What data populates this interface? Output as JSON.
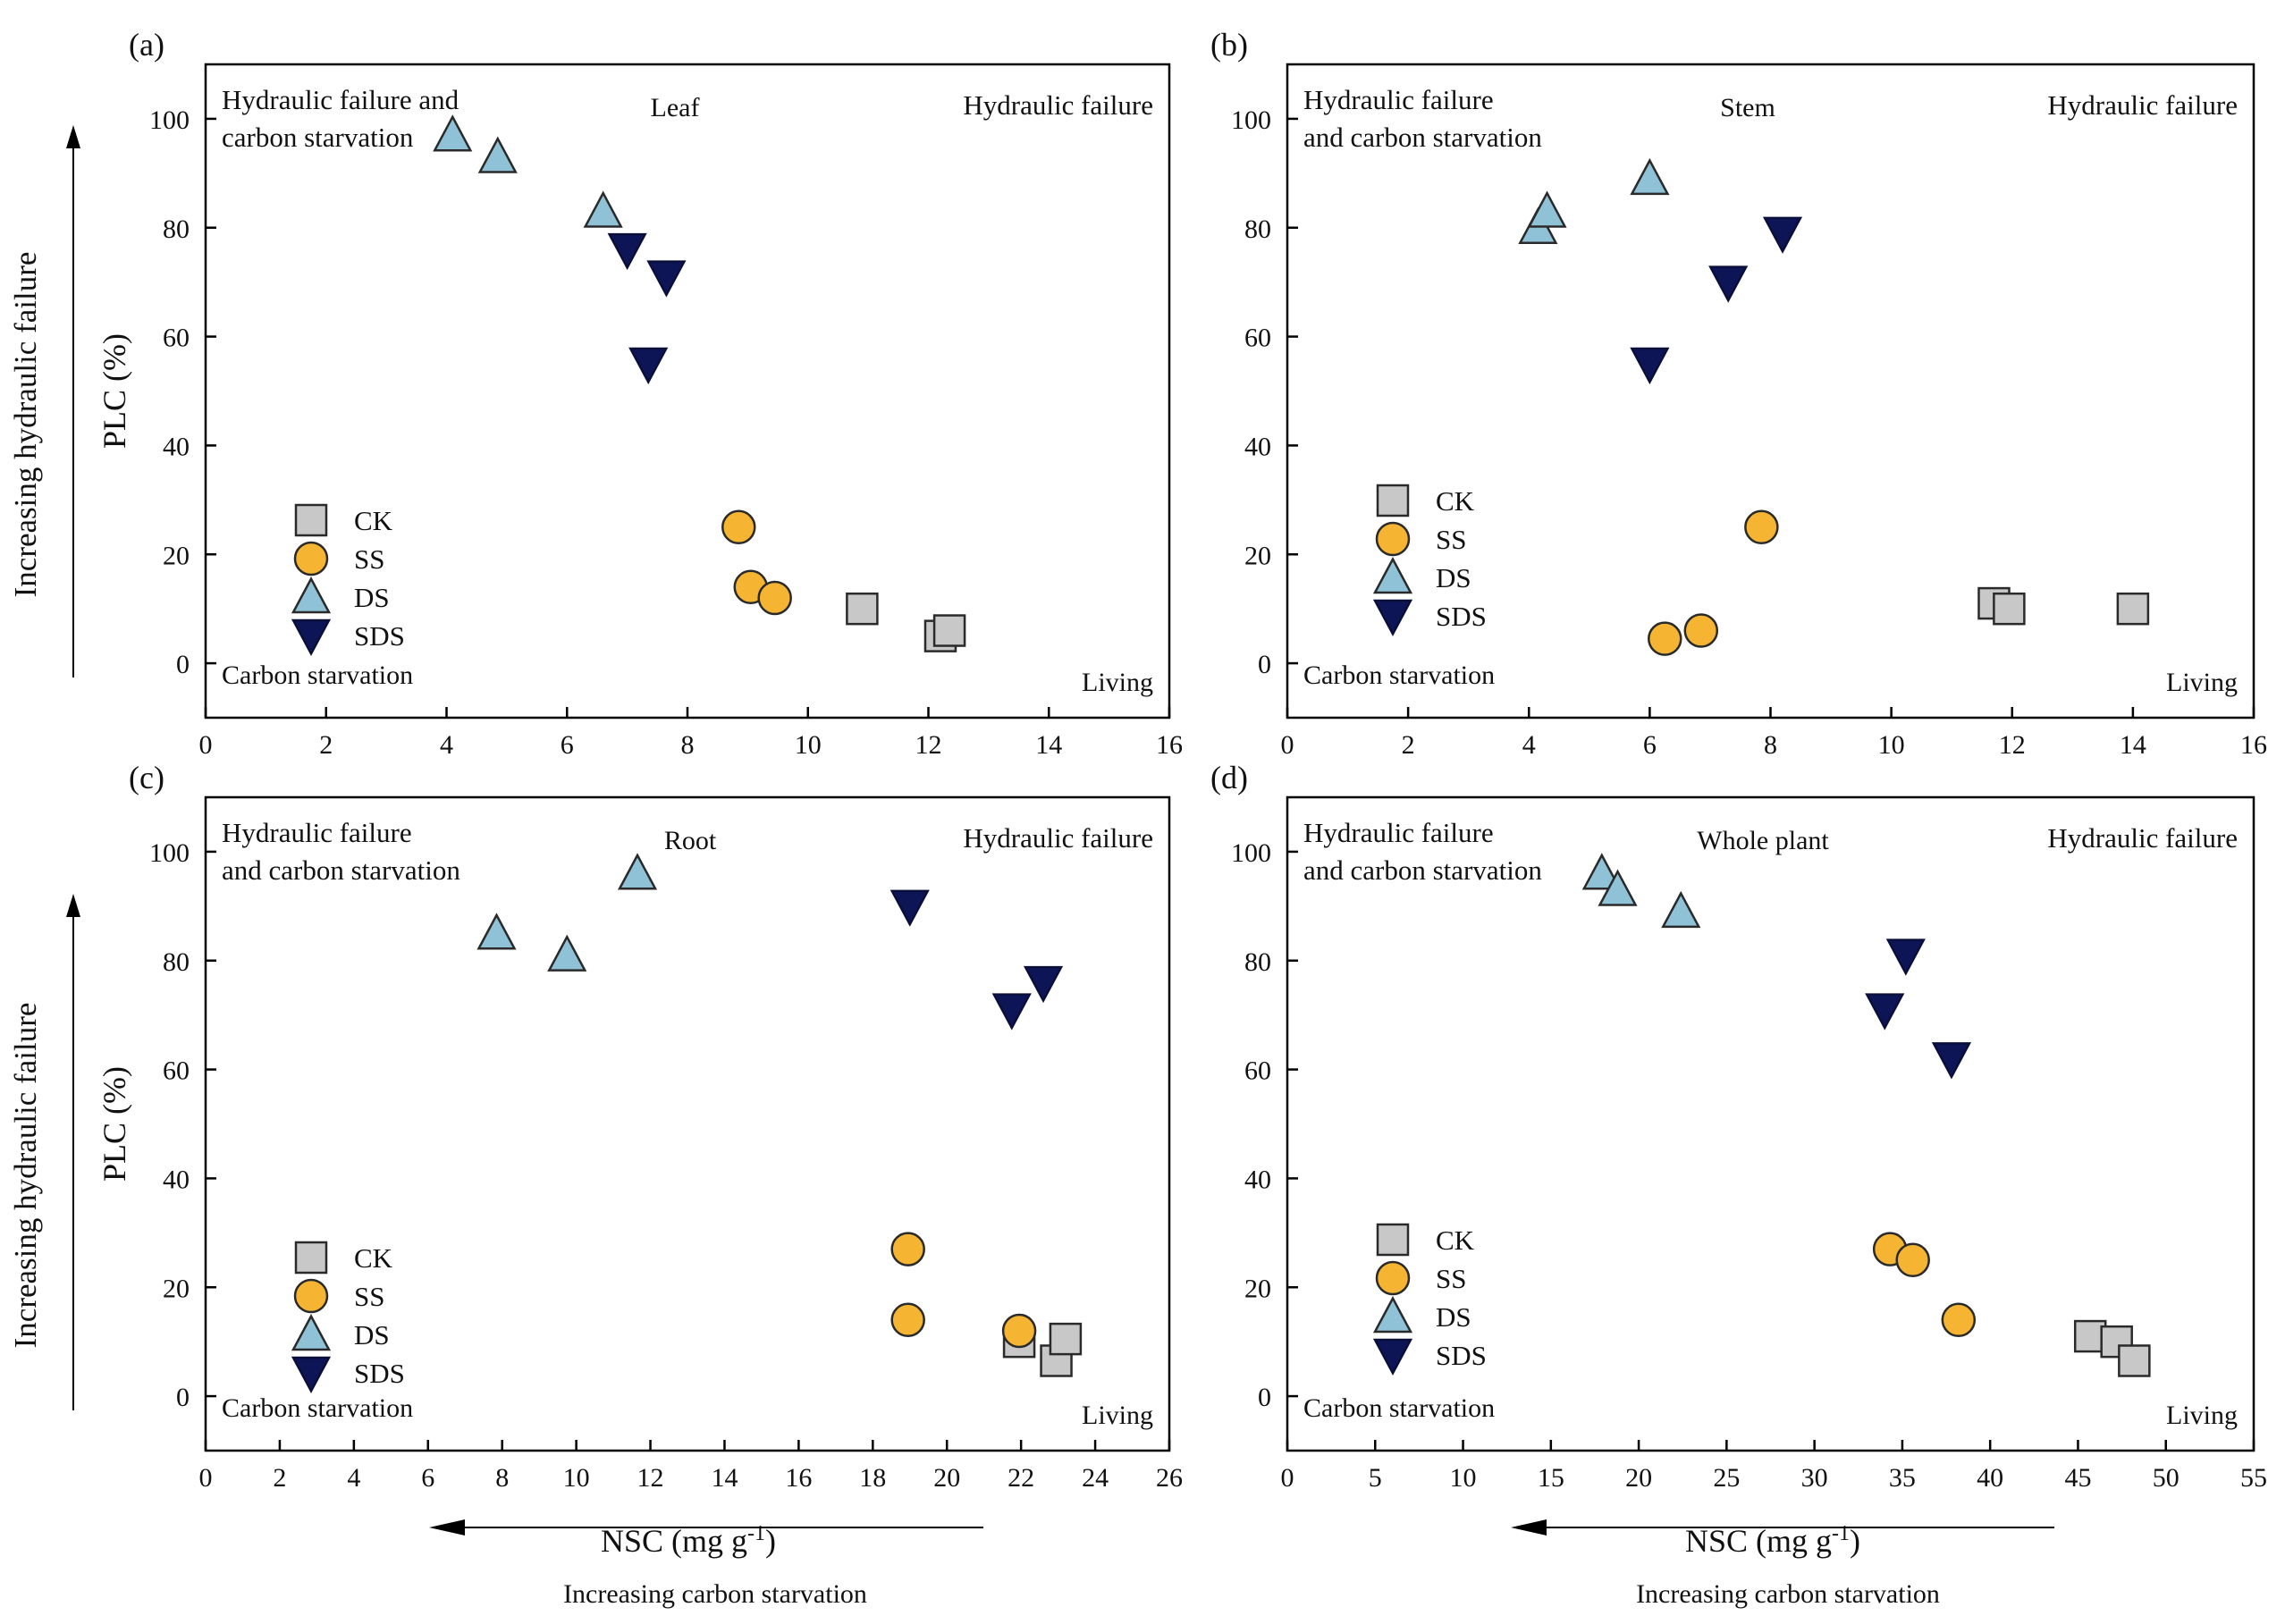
{
  "figure": {
    "y_axis_label": "PLC (%)",
    "x_axis_label_main": "NSC (mg g",
    "x_axis_label_sup": "-1",
    "x_axis_label_close": ")",
    "left_arrow_label": "Increasing hydraulic failure",
    "bottom_arrow_label": "Increasing carbon starvation"
  },
  "legend": {
    "entries": [
      "CK",
      "SS",
      "DS",
      "SDS"
    ]
  },
  "colors": {
    "CK": "#c8c8c8",
    "SS": "#f5b533",
    "DS": "#8fc2d6",
    "SDS": "#0d1556",
    "axis": "#000000"
  },
  "chart_data": [
    {
      "type": "scatter",
      "panel_label": "(a)",
      "title": "Leaf",
      "quadrant_labels": {
        "top_left_line1": "Hydraulic failure  and",
        "top_left_line2": "carbon starvation",
        "top_right": "Hydraulic failure",
        "bottom_left": "Carbon starvation",
        "bottom_right": "Living"
      },
      "xlim": [
        0,
        16
      ],
      "xticks": [
        0,
        2,
        4,
        6,
        8,
        10,
        12,
        14,
        16
      ],
      "ylim": [
        -10,
        110
      ],
      "yticks": [
        0,
        20,
        40,
        60,
        80,
        100
      ],
      "xlabel": "NSC (mg g-1)",
      "ylabel": "PLC (%)",
      "series": [
        {
          "name": "CK",
          "x": [
            10.9,
            12.2,
            12.35
          ],
          "y": [
            10,
            5,
            6
          ]
        },
        {
          "name": "SS",
          "x": [
            8.85,
            9.05,
            9.45
          ],
          "y": [
            25,
            14,
            12
          ]
        },
        {
          "name": "DS",
          "x": [
            4.1,
            4.85,
            6.6
          ],
          "y": [
            97,
            93,
            83
          ]
        },
        {
          "name": "SDS",
          "x": [
            7.0,
            7.35,
            7.65
          ],
          "y": [
            76,
            55,
            71
          ]
        }
      ]
    },
    {
      "type": "scatter",
      "panel_label": "(b)",
      "title": "Stem",
      "quadrant_labels": {
        "top_left_line1": "Hydraulic failure",
        "top_left_line2": "and carbon starvation",
        "top_right": "Hydraulic failure",
        "bottom_left": "Carbon starvation",
        "bottom_right": "Living"
      },
      "xlim": [
        0,
        16
      ],
      "xticks": [
        0,
        2,
        4,
        6,
        8,
        10,
        12,
        14,
        16
      ],
      "ylim": [
        -10,
        110
      ],
      "yticks": [
        0,
        20,
        40,
        60,
        80,
        100
      ],
      "xlabel": "NSC (mg g-1)",
      "ylabel": "PLC (%)",
      "series": [
        {
          "name": "CK",
          "x": [
            11.7,
            11.95,
            14.0
          ],
          "y": [
            11,
            10,
            10
          ]
        },
        {
          "name": "SS",
          "x": [
            6.25,
            6.85,
            7.85
          ],
          "y": [
            4.5,
            6,
            25
          ]
        },
        {
          "name": "DS",
          "x": [
            4.15,
            4.3,
            6.0
          ],
          "y": [
            80,
            83,
            89
          ]
        },
        {
          "name": "SDS",
          "x": [
            6.0,
            7.3,
            8.2
          ],
          "y": [
            55,
            70,
            79
          ]
        }
      ]
    },
    {
      "type": "scatter",
      "panel_label": "(c)",
      "title": "Root",
      "quadrant_labels": {
        "top_left_line1": "Hydraulic failure",
        "top_left_line2": "and carbon starvation",
        "top_right": "Hydraulic failure",
        "bottom_left": "Carbon starvation",
        "bottom_right": "Living"
      },
      "xlim": [
        0,
        26
      ],
      "xticks": [
        0,
        2,
        4,
        6,
        8,
        10,
        12,
        14,
        16,
        18,
        20,
        22,
        24,
        26
      ],
      "ylim": [
        -10,
        110
      ],
      "yticks": [
        0,
        20,
        40,
        60,
        80,
        100
      ],
      "xlabel": "NSC (mg g-1)",
      "ylabel": "PLC (%)",
      "series": [
        {
          "name": "CK",
          "x": [
            21.95,
            22.95,
            23.2
          ],
          "y": [
            10,
            6.5,
            10.5
          ]
        },
        {
          "name": "SS",
          "x": [
            18.95,
            18.95,
            21.95
          ],
          "y": [
            27,
            14,
            12
          ]
        },
        {
          "name": "DS",
          "x": [
            7.85,
            9.75,
            11.65
          ],
          "y": [
            85,
            81,
            96
          ]
        },
        {
          "name": "SDS",
          "x": [
            19.0,
            21.75,
            22.6
          ],
          "y": [
            90,
            71,
            76
          ]
        }
      ]
    },
    {
      "type": "scatter",
      "panel_label": "(d)",
      "title": "Whole plant",
      "quadrant_labels": {
        "top_left_line1": "Hydraulic failure",
        "top_left_line2": "and carbon starvation",
        "top_right": "Hydraulic failure",
        "bottom_left": "Carbon starvation",
        "bottom_right": "Living"
      },
      "xlim": [
        0,
        55
      ],
      "xticks": [
        0,
        5,
        10,
        15,
        20,
        25,
        30,
        35,
        40,
        45,
        50,
        55
      ],
      "ylim": [
        -10,
        110
      ],
      "yticks": [
        0,
        20,
        40,
        60,
        80,
        100
      ],
      "xlabel": "NSC (mg g-1)",
      "ylabel": "PLC (%)",
      "series": [
        {
          "name": "CK",
          "x": [
            45.7,
            47.2,
            48.2
          ],
          "y": [
            11,
            10,
            6.5
          ]
        },
        {
          "name": "SS",
          "x": [
            34.3,
            35.6,
            38.2
          ],
          "y": [
            27,
            25,
            14
          ]
        },
        {
          "name": "DS",
          "x": [
            17.9,
            18.8,
            22.4
          ],
          "y": [
            96,
            93,
            89
          ]
        },
        {
          "name": "SDS",
          "x": [
            34.0,
            35.2,
            37.8
          ],
          "y": [
            71,
            81,
            62
          ]
        }
      ]
    }
  ]
}
